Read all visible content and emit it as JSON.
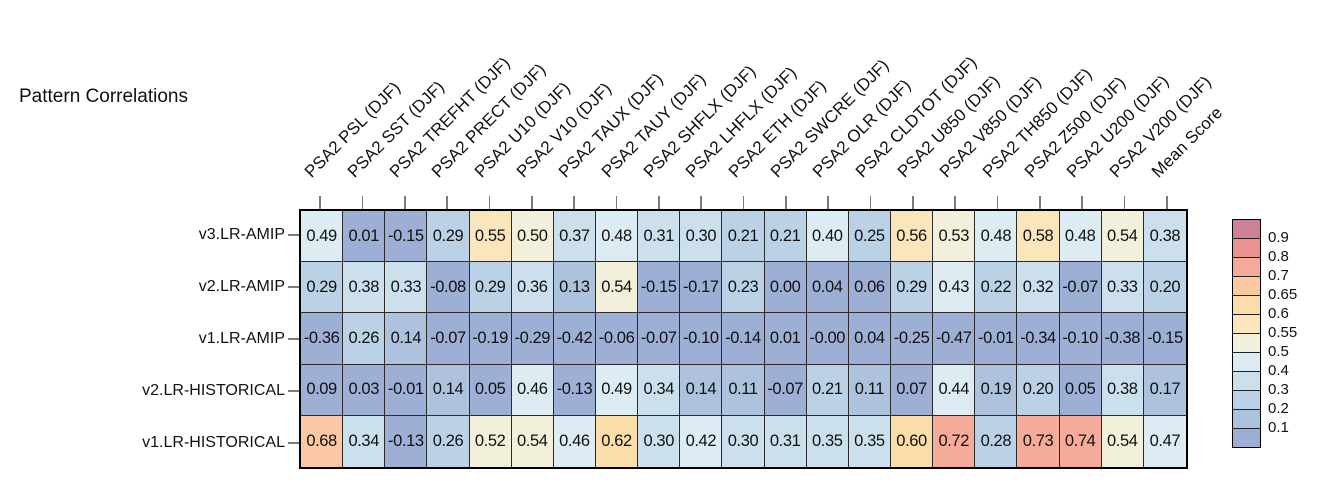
{
  "chart_data": {
    "type": "heatmap",
    "title": "Pattern Correlations",
    "season": "DJF",
    "x_categories": [
      "PSA2 PSL (DJF)",
      "PSA2 SST (DJF)",
      "PSA2 TREFHT (DJF)",
      "PSA2 PRECT (DJF)",
      "PSA2 U10 (DJF)",
      "PSA2 V10 (DJF)",
      "PSA2 TAUX (DJF)",
      "PSA2 TAUY (DJF)",
      "PSA2 SHFLX (DJF)",
      "PSA2 LHFLX (DJF)",
      "PSA2 ETH (DJF)",
      "PSA2 SWCRE (DJF)",
      "PSA2 OLR (DJF)",
      "PSA2 CLDTOT (DJF)",
      "PSA2 U850 (DJF)",
      "PSA2 V850 (DJF)",
      "PSA2 TH850 (DJF)",
      "PSA2 Z500 (DJF)",
      "PSA2 U200 (DJF)",
      "PSA2 V200 (DJF)",
      "Mean Score"
    ],
    "y_categories": [
      "v3.LR-AMIP",
      "v2.LR-AMIP",
      "v1.LR-AMIP",
      "v2.LR-HISTORICAL",
      "v1.LR-HISTORICAL"
    ],
    "values": [
      [
        0.49,
        0.01,
        -0.15,
        0.29,
        0.55,
        0.5,
        0.37,
        0.48,
        0.31,
        0.3,
        0.21,
        0.21,
        0.4,
        0.25,
        0.56,
        0.53,
        0.48,
        0.58,
        0.48,
        0.54,
        0.38
      ],
      [
        0.29,
        0.38,
        0.33,
        -0.08,
        0.29,
        0.36,
        0.13,
        0.54,
        -0.15,
        -0.17,
        0.23,
        0.0,
        0.04,
        0.06,
        0.29,
        0.43,
        0.22,
        0.32,
        -0.07,
        0.33,
        0.2
      ],
      [
        -0.36,
        0.26,
        0.14,
        -0.07,
        -0.19,
        -0.29,
        -0.42,
        -0.06,
        -0.07,
        -0.1,
        -0.14,
        0.01,
        0.0,
        0.04,
        -0.25,
        -0.47,
        -0.01,
        -0.34,
        -0.1,
        -0.38,
        -0.15
      ],
      [
        0.09,
        0.03,
        -0.01,
        0.14,
        0.05,
        0.46,
        -0.13,
        0.49,
        0.34,
        0.14,
        0.11,
        -0.07,
        0.21,
        0.11,
        0.07,
        0.44,
        0.19,
        0.2,
        0.05,
        0.38,
        0.17
      ],
      [
        0.68,
        0.34,
        -0.13,
        0.26,
        0.52,
        0.54,
        0.46,
        0.62,
        0.3,
        0.42,
        0.3,
        0.31,
        0.35,
        0.35,
        0.6,
        0.72,
        0.28,
        0.73,
        0.74,
        0.54,
        0.47
      ]
    ],
    "value_labels": [
      [
        "0.49",
        "0.01",
        "-0.15",
        "0.29",
        "0.55",
        "0.50",
        "0.37",
        "0.48",
        "0.31",
        "0.30",
        "0.21",
        "0.21",
        "0.40",
        "0.25",
        "0.56",
        "0.53",
        "0.48",
        "0.58",
        "0.48",
        "0.54",
        "0.38"
      ],
      [
        "0.29",
        "0.38",
        "0.33",
        "-0.08",
        "0.29",
        "0.36",
        "0.13",
        "0.54",
        "-0.15",
        "-0.17",
        "0.23",
        "0.00",
        "0.04",
        "0.06",
        "0.29",
        "0.43",
        "0.22",
        "0.32",
        "-0.07",
        "0.33",
        "0.20"
      ],
      [
        "-0.36",
        "0.26",
        "0.14",
        "-0.07",
        "-0.19",
        "-0.29",
        "-0.42",
        "-0.06",
        "-0.07",
        "-0.10",
        "-0.14",
        "0.01",
        "-0.00",
        "0.04",
        "-0.25",
        "-0.47",
        "-0.01",
        "-0.34",
        "-0.10",
        "-0.38",
        "-0.15"
      ],
      [
        "0.09",
        "0.03",
        "-0.01",
        "0.14",
        "0.05",
        "0.46",
        "-0.13",
        "0.49",
        "0.34",
        "0.14",
        "0.11",
        "-0.07",
        "0.21",
        "0.11",
        "0.07",
        "0.44",
        "0.19",
        "0.20",
        "0.05",
        "0.38",
        "0.17"
      ],
      [
        "0.68",
        "0.34",
        "-0.13",
        "0.26",
        "0.52",
        "0.54",
        "0.46",
        "0.62",
        "0.30",
        "0.42",
        "0.30",
        "0.31",
        "0.35",
        "0.35",
        "0.60",
        "0.72",
        "0.28",
        "0.73",
        "0.74",
        "0.54",
        "0.47"
      ]
    ],
    "colorbar": {
      "position": "right",
      "tick_labels": [
        "0.9",
        "0.8",
        "0.7",
        "0.65",
        "0.6",
        "0.55",
        "0.5",
        "0.4",
        "0.3",
        "0.2",
        "0.1"
      ],
      "thresholds": [
        0.9,
        0.8,
        0.7,
        0.65,
        0.6,
        0.55,
        0.5,
        0.4,
        0.3,
        0.2,
        0.1
      ],
      "band_colors": [
        "#cc8196",
        "#ea9390",
        "#f5ab9a",
        "#fac8a2",
        "#fbdcab",
        "#fae5bd",
        "#f2efdb",
        "#ddecf2",
        "#ccdfec",
        "#bbd2e6",
        "#adc3dd",
        "#9dafd5"
      ]
    },
    "grid": "on",
    "cell_border_color": "#2a2a2a",
    "outer_border_color": "#000000"
  }
}
